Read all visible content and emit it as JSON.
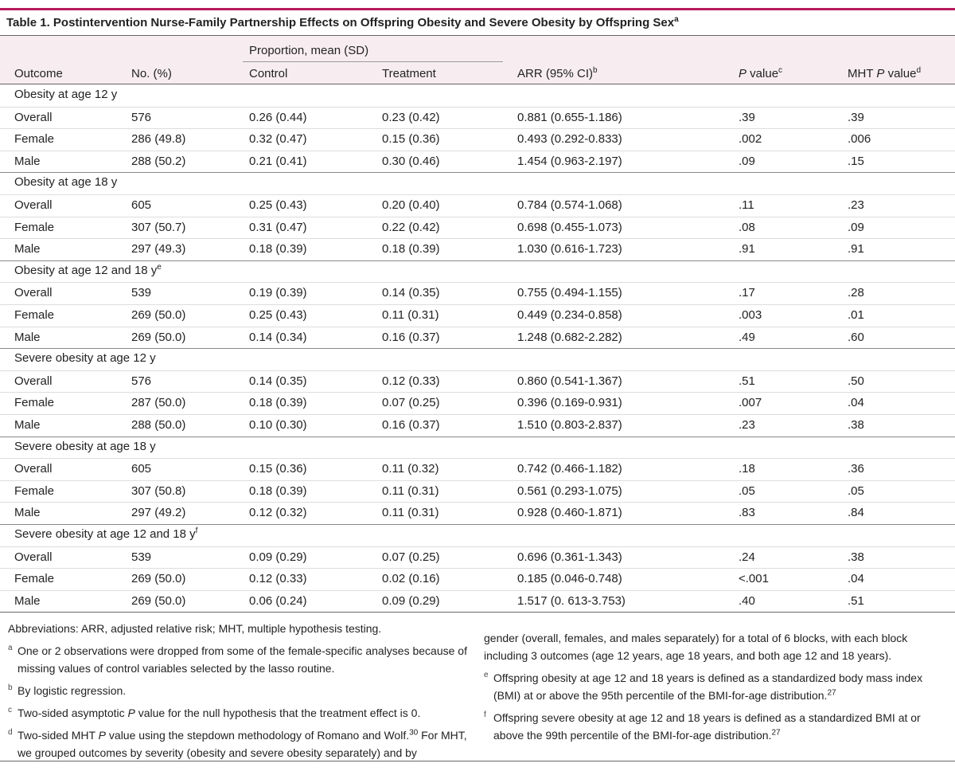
{
  "title": [
    "Table 1. Postintervention Nurse-Family Partnership Effects on Offspring Obesity and Severe Obesity by Offspring Sex",
    {
      "text": "a",
      "style": "sup"
    }
  ],
  "table": {
    "group_header": {
      "text": "Proportion, mean (SD)",
      "from": 2,
      "to": 3
    },
    "columns": [
      [
        "Outcome"
      ],
      [
        "No. (%)"
      ],
      [
        "Control"
      ],
      [
        "Treatment"
      ],
      [
        "ARR (95% CI)",
        {
          "text": "b",
          "style": "sup"
        }
      ],
      [
        {
          "text": "P",
          "style": "italic"
        },
        " value",
        {
          "text": "c",
          "style": "sup"
        }
      ],
      [
        "MHT ",
        {
          "text": "P",
          "style": "italic"
        },
        " value",
        {
          "text": "d",
          "style": "sup"
        }
      ]
    ],
    "sections": [
      {
        "title": [
          "Obesity at age 12 y"
        ],
        "rows": [
          [
            "Overall",
            "576",
            "0.26 (0.44)",
            "0.23 (0.42)",
            "0.881 (0.655-1.186)",
            ".39",
            ".39"
          ],
          [
            "Female",
            "286 (49.8)",
            "0.32 (0.47)",
            "0.15 (0.36)",
            "0.493 (0.292-0.833)",
            ".002",
            ".006"
          ],
          [
            "Male",
            "288 (50.2)",
            "0.21 (0.41)",
            "0.30 (0.46)",
            "1.454 (0.963-2.197)",
            ".09",
            ".15"
          ]
        ]
      },
      {
        "title": [
          "Obesity at age 18 y"
        ],
        "rows": [
          [
            "Overall",
            "605",
            "0.25 (0.43)",
            "0.20 (0.40)",
            "0.784 (0.574-1.068)",
            ".11",
            ".23"
          ],
          [
            "Female",
            "307 (50.7)",
            "0.31 (0.47)",
            "0.22 (0.42)",
            "0.698 (0.455-1.073)",
            ".08",
            ".09"
          ],
          [
            "Male",
            "297 (49.3)",
            "0.18 (0.39)",
            "0.18 (0.39)",
            "1.030 (0.616-1.723)",
            ".91",
            ".91"
          ]
        ]
      },
      {
        "title": [
          "Obesity at age 12 and 18 y",
          {
            "text": "e",
            "style": "sup"
          }
        ],
        "rows": [
          [
            "Overall",
            "539",
            "0.19 (0.39)",
            "0.14 (0.35)",
            "0.755 (0.494-1.155)",
            ".17",
            ".28"
          ],
          [
            "Female",
            "269 (50.0)",
            "0.25 (0.43)",
            "0.11 (0.31)",
            "0.449 (0.234-0.858)",
            ".003",
            ".01"
          ],
          [
            "Male",
            "269 (50.0)",
            "0.14 (0.34)",
            "0.16 (0.37)",
            "1.248 (0.682-2.282)",
            ".49",
            ".60"
          ]
        ]
      },
      {
        "title": [
          "Severe obesity at age 12 y"
        ],
        "rows": [
          [
            "Overall",
            "576",
            "0.14 (0.35)",
            "0.12 (0.33)",
            "0.860 (0.541-1.367)",
            ".51",
            ".50"
          ],
          [
            "Female",
            "287 (50.0)",
            "0.18 (0.39)",
            "0.07 (0.25)",
            "0.396 (0.169-0.931)",
            ".007",
            ".04"
          ],
          [
            "Male",
            "288 (50.0)",
            "0.10 (0.30)",
            "0.16 (0.37)",
            "1.510 (0.803-2.837)",
            ".23",
            ".38"
          ]
        ]
      },
      {
        "title": [
          "Severe obesity at age 18 y"
        ],
        "rows": [
          [
            "Overall",
            "605",
            "0.15 (0.36)",
            "0.11 (0.32)",
            "0.742 (0.466-1.182)",
            ".18",
            ".36"
          ],
          [
            "Female",
            "307 (50.8)",
            "0.18 (0.39)",
            "0.11 (0.31)",
            "0.561 (0.293-1.075)",
            ".05",
            ".05"
          ],
          [
            "Male",
            "297 (49.2)",
            "0.12 (0.32)",
            "0.11 (0.31)",
            "0.928 (0.460-1.871)",
            ".83",
            ".84"
          ]
        ]
      },
      {
        "title": [
          "Severe obesity at age 12 and 18 y",
          {
            "text": "f",
            "style": "sup"
          }
        ],
        "rows": [
          [
            "Overall",
            "539",
            "0.09 (0.29)",
            "0.07 (0.25)",
            "0.696 (0.361-1.343)",
            ".24",
            ".38"
          ],
          [
            "Female",
            "269 (50.0)",
            "0.12 (0.33)",
            "0.02 (0.16)",
            "0.185 (0.046-0.748)",
            "<.001",
            ".04"
          ],
          [
            "Male",
            "269 (50.0)",
            "0.06 (0.24)",
            "0.09 (0.29)",
            "1.517 (0. 613-3.753)",
            ".40",
            ".51"
          ]
        ]
      }
    ]
  },
  "footnotes": {
    "left": [
      {
        "runs": [
          "Abbreviations: ARR, adjusted relative risk; MHT, multiple hypothesis testing."
        ]
      },
      {
        "marker": "a",
        "runs": [
          "One or 2 observations were dropped from some of the female-specific analyses because of missing values of control variables selected by the lasso routine."
        ]
      },
      {
        "marker": "b",
        "runs": [
          "By logistic regression."
        ]
      },
      {
        "marker": "c",
        "runs": [
          "Two-sided asymptotic ",
          {
            "text": "P",
            "style": "italic"
          },
          " value for the null hypothesis that the treatment effect is 0."
        ]
      },
      {
        "marker": "d",
        "runs": [
          "Two-sided MHT ",
          {
            "text": "P",
            "style": "italic"
          },
          " value using the stepdown methodology of Romano and Wolf.",
          {
            "text": "30",
            "style": "sup"
          },
          " For MHT, we grouped outcomes by severity (obesity and severe obesity separately) and by"
        ]
      }
    ],
    "right": [
      {
        "runs": [
          "gender (overall, females, and males separately) for a total of 6 blocks, with each block including 3 outcomes (age 12 years, age 18 years, and both age 12 and 18 years)."
        ]
      },
      {
        "marker": "e",
        "runs": [
          "Offspring obesity at age 12 and 18 years is defined as a standardized body mass index (BMI) at or above the 95th percentile of the BMI-for-age distribution.",
          {
            "text": "27",
            "style": "sup"
          }
        ]
      },
      {
        "marker": "f",
        "runs": [
          "Offspring severe obesity at age 12 and 18 years is defined as a standardized BMI at or above the 99th percentile of the BMI-for-age distribution.",
          {
            "text": "27",
            "style": "sup"
          }
        ]
      }
    ]
  }
}
